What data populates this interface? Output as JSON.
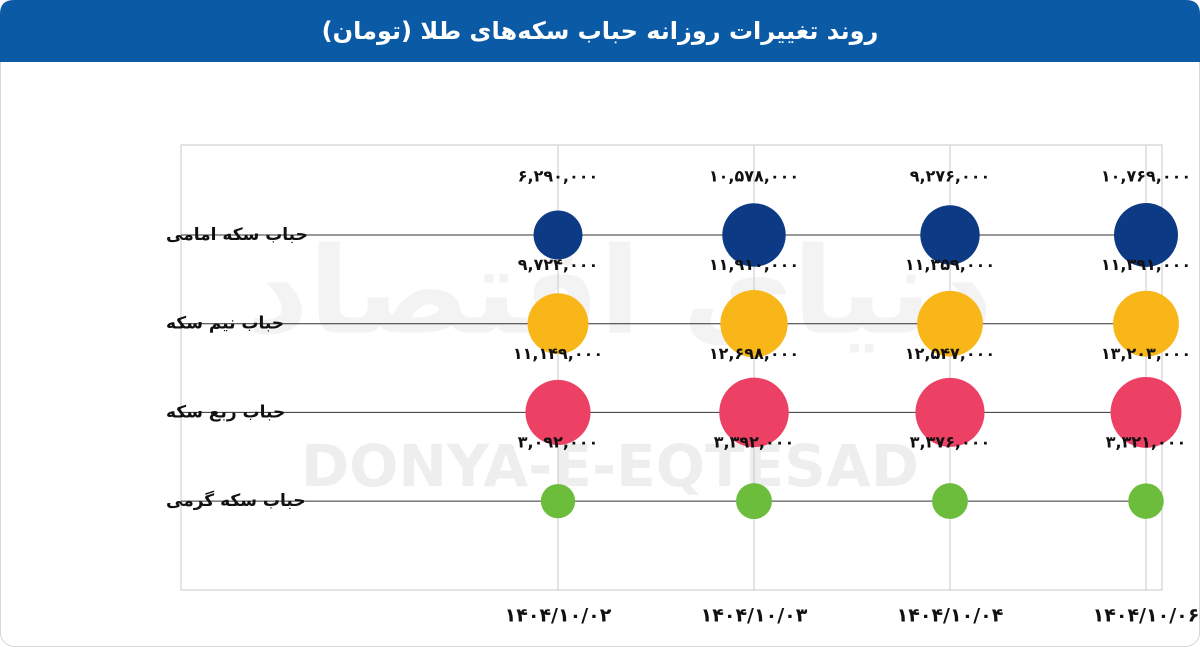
{
  "chart_data": {
    "type": "bubble",
    "title": "روند تغییرات روزانه حباب سکه‌های طلا (تومان)",
    "watermark": "DONYA-E-EQTESAD",
    "watermark_fa": "دنیای اقتصاد",
    "categories": [
      "۱۴۰۴/۱۰/۰۲",
      "۱۴۰۴/۱۰/۰۳",
      "۱۴۰۴/۱۰/۰۴",
      "۱۴۰۴/۱۰/۰۶"
    ],
    "grid": true,
    "series": [
      {
        "name": "حباب سکه امامی",
        "color": "#0d3a84",
        "values": [
          6290000,
          10578000,
          9276000,
          10769000
        ],
        "value_labels": [
          "۶,۲۹۰,۰۰۰",
          "۱۰,۵۷۸,۰۰۰",
          "۹,۲۷۶,۰۰۰",
          "۱۰,۷۶۹,۰۰۰"
        ]
      },
      {
        "name": "حباب نیم سکه",
        "color": "#f8b619",
        "values": [
          9724000,
          11910000,
          11359000,
          11391000
        ],
        "value_labels": [
          "۹,۷۲۴,۰۰۰",
          "۱۱,۹۱۰,۰۰۰",
          "۱۱,۳۵۹,۰۰۰",
          "۱۱,۳۹۱,۰۰۰"
        ]
      },
      {
        "name": "حباب ربع سکه",
        "color": "#ec4165",
        "values": [
          11149000,
          12698000,
          12547000,
          13203000
        ],
        "value_labels": [
          "۱۱,۱۴۹,۰۰۰",
          "۱۲,۶۹۸,۰۰۰",
          "۱۲,۵۴۷,۰۰۰",
          "۱۳,۲۰۳,۰۰۰"
        ]
      },
      {
        "name": "حباب سکه گرمی",
        "color": "#6cbd3c",
        "values": [
          3092000,
          3392000,
          3376000,
          3321000
        ],
        "value_labels": [
          "۳,۰۹۲,۰۰۰",
          "۳,۳۹۲,۰۰۰",
          "۳,۳۷۶,۰۰۰",
          "۳,۳۲۱,۰۰۰"
        ]
      }
    ]
  }
}
